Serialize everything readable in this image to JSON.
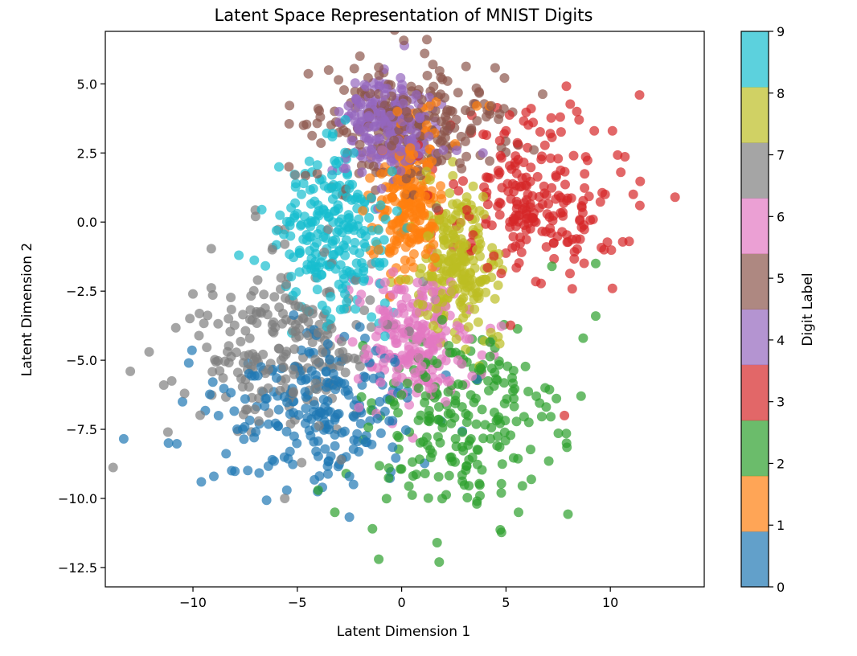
{
  "chart_data": {
    "type": "scatter",
    "title": "Latent Space Representation of MNIST Digits",
    "xlabel": "Latent Dimension 1",
    "ylabel": "Latent Dimension 2",
    "xlim": [
      -14.2,
      14.5
    ],
    "ylim": [
      -13.2,
      6.9
    ],
    "xticks": [
      -10,
      -5,
      0,
      5,
      10
    ],
    "xtick_labels": [
      "−10",
      "−5",
      "0",
      "5",
      "10"
    ],
    "yticks": [
      -12.5,
      -10.0,
      -7.5,
      -5.0,
      -2.5,
      0.0,
      2.5,
      5.0
    ],
    "ytick_labels": [
      "−12.5",
      "−10.0",
      "−7.5",
      "−5.0",
      "−2.5",
      "0.0",
      "2.5",
      "5.0"
    ],
    "grid": false,
    "marker_alpha": 0.7,
    "colorbar": {
      "label": "Digit Label",
      "ticks": [
        "0",
        "1",
        "2",
        "3",
        "4",
        "5",
        "6",
        "7",
        "8",
        "9"
      ],
      "colors": [
        "#1f77b4",
        "#ff7f0e",
        "#2ca02c",
        "#d62728",
        "#9467bd",
        "#8c564b",
        "#e377c2",
        "#7f7f7f",
        "#bcbd22",
        "#17becf"
      ]
    },
    "series": [
      {
        "name": "0",
        "color": "#1f77b4",
        "approx_center": [
          -3.8,
          -6.7
        ],
        "approx_spread": [
          2.3,
          1.3
        ],
        "points": [
          [
            -9.6,
            -9.4
          ],
          [
            -9.0,
            -9.2
          ],
          [
            -10.5,
            -6.5
          ],
          [
            -10.2,
            -5.1
          ],
          [
            -5.5,
            -9.7
          ],
          [
            -3.8,
            -9.6
          ],
          [
            -2.5,
            -9.2
          ],
          [
            -4.2,
            -3.9
          ],
          [
            -2.0,
            -3.8
          ],
          [
            -7.5,
            -6.4
          ],
          [
            -6.2,
            -8.6
          ],
          [
            -3.2,
            -7.7
          ]
        ]
      },
      {
        "name": "1",
        "color": "#ff7f0e",
        "approx_center": [
          0.4,
          0.8
        ],
        "approx_spread": [
          0.9,
          1.4
        ],
        "points": [
          [
            -0.2,
            4.0
          ],
          [
            1.2,
            3.5
          ],
          [
            0.4,
            2.3
          ],
          [
            -0.4,
            1.2
          ],
          [
            0.9,
            1.0
          ],
          [
            0.2,
            -0.6
          ],
          [
            1.6,
            -1.3
          ],
          [
            3.6,
            4.2
          ],
          [
            4.2,
            4.2
          ],
          [
            -1.1,
            -1.0
          ]
        ]
      },
      {
        "name": "2",
        "color": "#2ca02c",
        "approx_center": [
          2.8,
          -7.0
        ],
        "approx_spread": [
          2.4,
          1.6
        ],
        "points": [
          [
            -4.0,
            -9.7
          ],
          [
            -3.2,
            -10.5
          ],
          [
            -1.4,
            -11.1
          ],
          [
            -1.1,
            -12.2
          ],
          [
            1.7,
            -11.6
          ],
          [
            1.8,
            -12.3
          ],
          [
            3.6,
            -10.2
          ],
          [
            5.6,
            -10.5
          ],
          [
            7.9,
            -8.0
          ],
          [
            8.6,
            -6.3
          ],
          [
            9.3,
            -3.4
          ],
          [
            8.7,
            -4.2
          ],
          [
            9.3,
            -1.5
          ],
          [
            7.2,
            -1.6
          ]
        ]
      },
      {
        "name": "3",
        "color": "#d62728",
        "approx_center": [
          6.2,
          0.8
        ],
        "approx_spread": [
          2.0,
          1.5
        ],
        "points": [
          [
            13.1,
            0.9
          ],
          [
            11.4,
            4.6
          ],
          [
            11.1,
            1.0
          ],
          [
            10.9,
            -0.7
          ],
          [
            10.5,
            1.8
          ],
          [
            10.1,
            3.3
          ],
          [
            8.5,
            3.7
          ],
          [
            7.6,
            3.8
          ],
          [
            6.3,
            3.6
          ],
          [
            5.0,
            3.3
          ],
          [
            9.7,
            -1.0
          ],
          [
            10.1,
            -2.4
          ],
          [
            7.8,
            -7.0
          ]
        ]
      },
      {
        "name": "4",
        "color": "#9467bd",
        "approx_center": [
          -0.6,
          3.4
        ],
        "approx_spread": [
          1.1,
          0.9
        ],
        "points": [
          [
            -1.7,
            4.9
          ],
          [
            -0.8,
            4.6
          ],
          [
            0.7,
            4.6
          ],
          [
            1.3,
            3.1
          ],
          [
            2.0,
            2.6
          ],
          [
            -1.9,
            1.8
          ],
          [
            -0.5,
            2.2
          ],
          [
            3.9,
            2.5
          ]
        ]
      },
      {
        "name": "5",
        "color": "#8c564b",
        "approx_center": [
          0.4,
          3.5
        ],
        "approx_spread": [
          2.2,
          1.1
        ],
        "points": [
          [
            -3.5,
            5.5
          ],
          [
            -2.0,
            6.0
          ],
          [
            1.1,
            6.1
          ],
          [
            1.5,
            5.7
          ],
          [
            -1.1,
            5.6
          ],
          [
            2.2,
            5.1
          ],
          [
            -4.0,
            4.1
          ],
          [
            -4.7,
            3.5
          ],
          [
            -5.4,
            2.0
          ],
          [
            -3.9,
            3.8
          ],
          [
            4.3,
            4.2
          ],
          [
            4.9,
            4.1
          ]
        ]
      },
      {
        "name": "6",
        "color": "#e377c2",
        "approx_center": [
          0.8,
          -4.2
        ],
        "approx_spread": [
          1.3,
          1.1
        ],
        "points": [
          [
            -2.0,
            -2.9
          ],
          [
            -0.4,
            -1.8
          ],
          [
            1.6,
            -2.8
          ],
          [
            -1.0,
            -5.8
          ],
          [
            1.5,
            -6.0
          ],
          [
            2.7,
            -5.0
          ],
          [
            0.1,
            -4.2
          ],
          [
            -0.9,
            -3.6
          ],
          [
            3.0,
            -3.9
          ],
          [
            -1.7,
            -4.6
          ]
        ]
      },
      {
        "name": "7",
        "color": "#7f7f7f",
        "approx_center": [
          -5.6,
          -4.4
        ],
        "approx_spread": [
          2.1,
          1.6
        ],
        "points": [
          [
            -13.0,
            -5.4
          ],
          [
            -12.1,
            -4.7
          ],
          [
            -11.4,
            -5.9
          ],
          [
            -11.2,
            -7.6
          ],
          [
            -10.4,
            -6.2
          ],
          [
            -10.0,
            -2.6
          ],
          [
            -7.0,
            0.2
          ],
          [
            -6.2,
            -1.0
          ],
          [
            -5.6,
            -10.0
          ],
          [
            -5.6,
            -0.8
          ],
          [
            -4.0,
            -4.0
          ],
          [
            -2.9,
            -8.6
          ],
          [
            -5.1,
            1.7
          ],
          [
            -8.3,
            -3.5
          ],
          [
            -6.9,
            -2.1
          ]
        ]
      },
      {
        "name": "8",
        "color": "#bcbd22",
        "approx_center": [
          2.6,
          -1.6
        ],
        "approx_spread": [
          1.1,
          1.4
        ],
        "points": [
          [
            1.8,
            0.1
          ],
          [
            2.7,
            0.4
          ],
          [
            3.6,
            -1.0
          ],
          [
            2.4,
            -2.5
          ],
          [
            1.0,
            -3.0
          ],
          [
            3.2,
            -3.8
          ],
          [
            4.3,
            -2.0
          ],
          [
            2.8,
            -1.1
          ],
          [
            2.0,
            -0.3
          ],
          [
            4.7,
            -4.4
          ]
        ]
      },
      {
        "name": "9",
        "color": "#17becf",
        "approx_center": [
          -3.3,
          -0.7
        ],
        "approx_spread": [
          1.4,
          1.5
        ],
        "points": [
          [
            -7.8,
            -1.2
          ],
          [
            -5.0,
            0.3
          ],
          [
            -4.8,
            1.0
          ],
          [
            -4.7,
            1.4
          ],
          [
            -2.7,
            3.7
          ],
          [
            -3.3,
            3.2
          ],
          [
            -2.1,
            1.0
          ],
          [
            -3.4,
            -2.7
          ],
          [
            -3.6,
            -3.2
          ],
          [
            -2.5,
            -1.8
          ],
          [
            -3.0,
            0.0
          ],
          [
            -2.3,
            2.5
          ]
        ]
      }
    ]
  }
}
